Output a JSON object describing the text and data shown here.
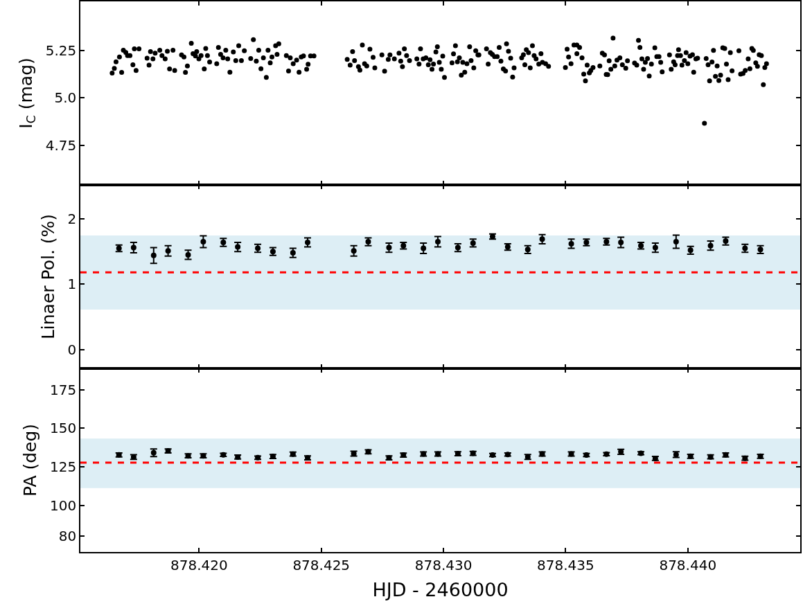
{
  "chart_data": [
    {
      "type": "scatter",
      "ylabel": "I$_{C}$ (mag)",
      "color": "#000000",
      "marker": "circle",
      "tick_labels": "y",
      "grid": false,
      "xlim": [
        878.41514,
        878.4446
      ],
      "xticks": [
        {
          "value": 878.42,
          "label": null
        },
        {
          "value": 878.425,
          "label": null
        },
        {
          "value": 878.43,
          "label": null
        },
        {
          "value": 878.435,
          "label": null
        },
        {
          "value": 878.44,
          "label": null
        }
      ],
      "ylim": [
        4.54,
        5.51
      ],
      "yticks": [
        {
          "value": 4.75,
          "label": "4.75"
        },
        {
          "value": 5.0,
          "label": "5.0"
        },
        {
          "value": 5.25,
          "label": "5.25"
        }
      ],
      "x": [
        878.41644,
        878.41653,
        878.4166,
        878.41674,
        878.41683,
        878.4169,
        878.417,
        878.41707,
        878.41717,
        878.41729,
        878.41735,
        878.41742,
        878.41754,
        878.41787,
        878.41795,
        878.41801,
        878.41811,
        878.4182,
        878.41839,
        878.41848,
        878.41861,
        878.4187,
        878.41879,
        878.41893,
        878.419,
        878.41928,
        878.41938,
        878.41944,
        878.41952,
        878.41968,
        878.41975,
        878.41985,
        878.4199,
        878.41999,
        878.42008,
        878.42021,
        878.42027,
        878.42034,
        878.42043,
        878.42072,
        878.42079,
        878.42088,
        878.42098,
        878.42109,
        878.42117,
        878.42126,
        878.4214,
        878.4215,
        878.42162,
        878.42173,
        878.42185,
        878.42211,
        878.42222,
        878.42234,
        878.42244,
        878.42253,
        878.42263,
        878.42275,
        878.42282,
        878.42291,
        878.42298,
        878.42313,
        878.42319,
        878.42326,
        878.42357,
        878.42366,
        878.42373,
        878.42385,
        878.42399,
        878.42409,
        878.42418,
        878.42427,
        878.4244,
        878.42446,
        878.42456,
        878.4247,
        878.42606,
        878.42618,
        878.42628,
        878.42636,
        878.42652,
        878.42658,
        878.42668,
        878.42677,
        878.42686,
        878.42699,
        878.42712,
        878.42719,
        878.42748,
        878.42759,
        878.42774,
        878.42781,
        878.42799,
        878.42818,
        878.42825,
        878.42832,
        878.4284,
        878.42849,
        878.42861,
        878.42891,
        878.429,
        878.42906,
        878.42917,
        878.42928,
        878.42938,
        878.42945,
        878.42953,
        878.42959,
        878.42969,
        878.42975,
        878.42983,
        878.42991,
        878.42997,
        878.43004,
        878.43035,
        878.43041,
        878.43049,
        878.43057,
        878.43065,
        878.43073,
        878.43079,
        878.43087,
        878.43096,
        878.43107,
        878.43113,
        878.43124,
        878.43132,
        878.43141,
        878.43145,
        878.43176,
        878.43183,
        878.43192,
        878.432,
        878.43209,
        878.4322,
        878.43228,
        878.43235,
        878.43245,
        878.43254,
        878.43258,
        878.43266,
        878.43275,
        878.43283,
        878.43289,
        878.4332,
        878.43327,
        878.43333,
        878.43339,
        878.43348,
        878.43355,
        878.43364,
        878.43371,
        878.43379,
        878.4339,
        878.43399,
        878.43405,
        878.43418,
        878.4343,
        878.43499,
        878.43506,
        878.43512,
        878.43522,
        878.43534,
        878.43546,
        878.43546,
        878.43557,
        878.43567,
        878.43574,
        878.43581,
        878.43588,
        878.43597,
        878.43603,
        878.43612,
        878.4364,
        878.4365,
        878.43659,
        878.43666,
        878.43672,
        878.43678,
        878.43685,
        878.43694,
        878.43701,
        878.4371,
        878.43722,
        878.43732,
        878.43746,
        878.43753,
        878.43782,
        878.43791,
        878.43798,
        878.43804,
        878.43812,
        878.43819,
        878.43826,
        878.43835,
        878.43842,
        878.43851,
        878.43865,
        878.43873,
        878.43882,
        878.43889,
        878.43895,
        878.43925,
        878.43932,
        878.43942,
        878.43948,
        878.43958,
        878.43962,
        878.4397,
        878.43976,
        878.43986,
        878.43993,
        878.44,
        878.44009,
        878.44019,
        878.44024,
        878.44033,
        878.4404,
        878.44068,
        878.44075,
        878.44083,
        878.44089,
        878.44099,
        878.44105,
        878.44113,
        878.4412,
        878.44127,
        878.44134,
        878.44143,
        878.44151,
        878.44158,
        878.44165,
        878.44174,
        878.44181,
        878.44209,
        878.44216,
        878.44226,
        878.44235,
        878.44247,
        878.44254,
        878.44262,
        878.44268,
        878.44278,
        878.44285,
        878.44292,
        878.44301,
        878.44309,
        878.44315,
        878.44322
      ],
      "values": [
        5.131,
        5.156,
        5.191,
        5.216,
        5.135,
        5.252,
        5.24,
        5.224,
        5.224,
        5.175,
        5.259,
        5.145,
        5.259,
        5.21,
        5.173,
        5.245,
        5.206,
        5.236,
        5.252,
        5.224,
        5.206,
        5.246,
        5.153,
        5.252,
        5.145,
        5.227,
        5.216,
        5.135,
        5.169,
        5.289,
        5.234,
        5.222,
        5.245,
        5.206,
        5.224,
        5.153,
        5.261,
        5.224,
        5.19,
        5.181,
        5.267,
        5.23,
        5.212,
        5.252,
        5.206,
        5.136,
        5.243,
        5.197,
        5.276,
        5.197,
        5.249,
        5.208,
        5.308,
        5.194,
        5.252,
        5.154,
        5.212,
        5.108,
        5.252,
        5.185,
        5.216,
        5.276,
        5.23,
        5.286,
        5.224,
        5.142,
        5.212,
        5.181,
        5.2,
        5.136,
        5.216,
        5.222,
        5.151,
        5.178,
        5.222,
        5.222,
        5.203,
        5.173,
        5.245,
        5.197,
        5.165,
        5.147,
        5.279,
        5.181,
        5.169,
        5.257,
        5.214,
        5.159,
        5.227,
        5.141,
        5.203,
        5.227,
        5.206,
        5.236,
        5.194,
        5.165,
        5.259,
        5.224,
        5.197,
        5.206,
        5.179,
        5.259,
        5.206,
        5.212,
        5.175,
        5.202,
        5.151,
        5.179,
        5.243,
        5.27,
        5.188,
        5.151,
        5.221,
        5.108,
        5.185,
        5.233,
        5.276,
        5.191,
        5.212,
        5.12,
        5.188,
        5.136,
        5.181,
        5.27,
        5.197,
        5.159,
        5.249,
        5.227,
        5.227,
        5.259,
        5.179,
        5.239,
        5.23,
        5.218,
        5.218,
        5.267,
        5.194,
        5.153,
        5.142,
        5.286,
        5.246,
        5.21,
        5.11,
        5.159,
        5.212,
        5.228,
        5.175,
        5.255,
        5.239,
        5.159,
        5.276,
        5.224,
        5.206,
        5.179,
        5.234,
        5.188,
        5.181,
        5.167,
        5.16,
        5.257,
        5.216,
        5.181,
        5.279,
        5.279,
        5.234,
        5.267,
        5.212,
        5.126,
        5.09,
        5.173,
        5.132,
        5.145,
        5.16,
        5.169,
        5.236,
        5.227,
        5.124,
        5.123,
        5.196,
        5.151,
        5.316,
        5.169,
        5.2,
        5.212,
        5.175,
        5.157,
        5.196,
        5.184,
        5.173,
        5.304,
        5.267,
        5.206,
        5.151,
        5.188,
        5.208,
        5.116,
        5.179,
        5.265,
        5.218,
        5.218,
        5.188,
        5.138,
        5.227,
        5.151,
        5.191,
        5.175,
        5.224,
        5.255,
        5.224,
        5.173,
        5.197,
        5.239,
        5.181,
        5.221,
        5.228,
        5.136,
        5.206,
        5.21,
        4.866,
        5.208,
        5.175,
        5.09,
        5.19,
        5.251,
        5.114,
        5.169,
        5.092,
        5.12,
        5.265,
        5.261,
        5.179,
        5.096,
        5.239,
        5.143,
        5.249,
        5.126,
        5.129,
        5.145,
        5.206,
        5.154,
        5.261,
        5.251,
        5.185,
        5.167,
        5.228,
        5.224,
        5.07,
        5.16,
        5.181
      ]
    },
    {
      "type": "scatter",
      "ylabel": "Linaer Pol. (%)",
      "color": "#000000",
      "marker": "circle",
      "tick_labels": "y",
      "grid": false,
      "xlim": [
        878.41514,
        878.4446
      ],
      "xticks": [
        {
          "value": 878.42,
          "label": null
        },
        {
          "value": 878.425,
          "label": null
        },
        {
          "value": 878.43,
          "label": null
        },
        {
          "value": 878.435,
          "label": null
        },
        {
          "value": 878.44,
          "label": null
        }
      ],
      "ylim": [
        -0.29,
        2.52
      ],
      "yticks": [
        0,
        1,
        2
      ],
      "bands": [
        {
          "axis": "y",
          "from": 0.61,
          "to": 1.745,
          "color": "#ddeef5"
        }
      ],
      "ref_lines": [
        {
          "axis": "y",
          "value": 1.18,
          "color": "#ff0000",
          "line_style": "dashed"
        }
      ],
      "x": [
        878.41672,
        878.41732,
        878.41814,
        878.41873,
        878.41955,
        878.42017,
        878.42099,
        878.42158,
        878.4224,
        878.42302,
        878.42384,
        878.42444,
        878.42633,
        878.42692,
        878.42777,
        878.42836,
        878.42918,
        878.42977,
        878.43059,
        878.43121,
        878.43201,
        878.43263,
        878.43345,
        878.43404,
        878.43523,
        878.43585,
        878.43667,
        878.43726,
        878.43808,
        878.43867,
        878.43952,
        878.44011,
        878.44093,
        878.44155,
        878.44234,
        878.44297
      ],
      "values": [
        1.55,
        1.56,
        1.44,
        1.51,
        1.45,
        1.65,
        1.64,
        1.57,
        1.55,
        1.5,
        1.48,
        1.64,
        1.51,
        1.65,
        1.56,
        1.59,
        1.55,
        1.65,
        1.56,
        1.63,
        1.73,
        1.57,
        1.53,
        1.69,
        1.62,
        1.64,
        1.65,
        1.64,
        1.59,
        1.56,
        1.65,
        1.52,
        1.59,
        1.66,
        1.55,
        1.53
      ],
      "errors": [
        0.05,
        0.08,
        0.12,
        0.08,
        0.07,
        0.09,
        0.06,
        0.07,
        0.06,
        0.06,
        0.07,
        0.07,
        0.08,
        0.06,
        0.07,
        0.05,
        0.08,
        0.08,
        0.06,
        0.06,
        0.04,
        0.05,
        0.06,
        0.07,
        0.07,
        0.05,
        0.05,
        0.08,
        0.05,
        0.07,
        0.1,
        0.06,
        0.07,
        0.06,
        0.06,
        0.06
      ]
    },
    {
      "type": "scatter",
      "ylabel": "PA (deg)",
      "xlabel": "HJD - 2460000",
      "color": "#000000",
      "marker": "circle",
      "grid": false,
      "xlim": [
        878.41514,
        878.4446
      ],
      "xticks": [
        {
          "value": 878.42,
          "label": "878.420"
        },
        {
          "value": 878.425,
          "label": "878.425"
        },
        {
          "value": 878.43,
          "label": "878.430"
        },
        {
          "value": 878.435,
          "label": "878.435"
        },
        {
          "value": 878.44,
          "label": "878.440"
        }
      ],
      "ylim": [
        69.7,
        188.8
      ],
      "yticks": [
        80,
        100,
        125,
        150,
        175
      ],
      "bands": [
        {
          "axis": "y",
          "from": 111.2,
          "to": 143.3,
          "color": "#ddeef5"
        }
      ],
      "ref_lines": [
        {
          "axis": "y",
          "value": 127.7,
          "color": "#ff0000",
          "line_style": "dashed"
        }
      ],
      "x": [
        878.41672,
        878.41732,
        878.41814,
        878.41873,
        878.41955,
        878.42017,
        878.42099,
        878.42158,
        878.4224,
        878.42302,
        878.42384,
        878.42444,
        878.42633,
        878.42692,
        878.42777,
        878.42836,
        878.42918,
        878.42977,
        878.43059,
        878.43121,
        878.43201,
        878.43263,
        878.43345,
        878.43404,
        878.43523,
        878.43585,
        878.43667,
        878.43726,
        878.43808,
        878.43867,
        878.43952,
        878.44011,
        878.44093,
        878.44155,
        878.44234,
        878.44297
      ],
      "values": [
        132.7,
        131.3,
        134.1,
        135.3,
        132.1,
        132.1,
        132.7,
        131.3,
        130.9,
        131.7,
        133.2,
        130.8,
        133.5,
        134.7,
        130.8,
        132.6,
        133.3,
        133.3,
        133.5,
        133.7,
        132.6,
        133.0,
        131.4,
        133.3,
        133.3,
        132.6,
        133.2,
        134.7,
        133.8,
        130.4,
        132.9,
        131.8,
        131.4,
        132.7,
        130.5,
        131.8
      ],
      "errors": [
        1.3,
        1.5,
        2.5,
        1.3,
        1.3,
        1.3,
        1.0,
        1.3,
        1.1,
        1.3,
        1.3,
        1.3,
        1.6,
        1.3,
        1.3,
        1.3,
        1.3,
        1.3,
        1.3,
        1.3,
        1.0,
        1.0,
        1.6,
        1.3,
        1.3,
        1.0,
        1.0,
        1.6,
        1.0,
        1.3,
        1.8,
        1.3,
        1.3,
        1.3,
        1.3,
        1.3
      ]
    }
  ]
}
